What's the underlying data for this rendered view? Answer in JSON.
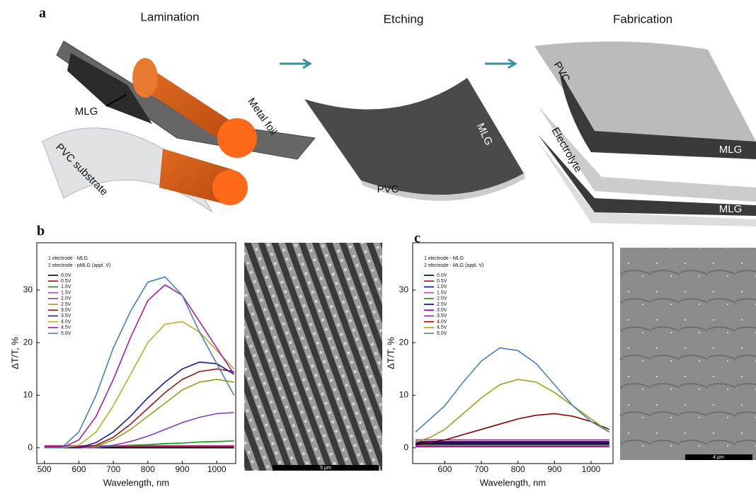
{
  "panel_labels": [
    "a",
    "b",
    "c"
  ],
  "diagram": {
    "steps": [
      "Lamination",
      "Etching",
      "Fabrication"
    ],
    "labels": [
      "MLG",
      "Metal foil",
      "PVC substrate",
      "MLG",
      "PVC",
      "PVC",
      "MLG",
      "Electrolyte",
      "MLG"
    ]
  },
  "images": [
    {
      "scale_bar": "5 μm"
    },
    {
      "scale_bar": "4 μm"
    }
  ],
  "chart_data": [
    {
      "type": "line",
      "x_label": "Wavelength, nm",
      "y_label": "ΔT/T, %",
      "legend_title": [
        "1 electrode - MLG",
        "2 electrode - pMLG (appl. V)"
      ],
      "xlim": [
        478,
        1055
      ],
      "ylim": [
        -3,
        39
      ],
      "xticks": [
        500,
        600,
        700,
        800,
        900,
        1000
      ],
      "yticks": [
        0,
        10,
        20,
        30
      ],
      "x": [
        500,
        550,
        600,
        650,
        700,
        750,
        800,
        850,
        900,
        950,
        1000,
        1050
      ],
      "series": [
        {
          "name": "0.0V",
          "color": "#000000",
          "values": [
            0,
            0,
            0,
            0,
            0,
            0,
            0,
            0,
            0,
            0,
            0,
            0
          ]
        },
        {
          "name": "0.5V",
          "color": "#c00000",
          "values": [
            0.2,
            0.2,
            0.2,
            0.2,
            0.2,
            0.2,
            0.2,
            0.2,
            0.2,
            0.2,
            0.2,
            0.2
          ]
        },
        {
          "name": "1.0V",
          "color": "#00a000",
          "values": [
            0,
            0,
            0.1,
            0.2,
            0.3,
            0.5,
            0.6,
            0.8,
            0.9,
            1.1,
            1.2,
            1.3
          ]
        },
        {
          "name": "1.5V",
          "color": "#e020e0",
          "values": [
            0.4,
            0.4,
            0.4,
            0.4,
            0.4,
            0.4,
            0.4,
            0.4,
            0.4,
            0.4,
            0.4,
            0.4
          ]
        },
        {
          "name": "2.0V",
          "color": "#8040c0",
          "values": [
            0,
            0,
            0,
            0,
            0.5,
            1.2,
            2.2,
            3.5,
            4.8,
            5.8,
            6.5,
            6.7
          ]
        },
        {
          "name": "2.5V",
          "color": "#9a9a20",
          "values": [
            0,
            0,
            0,
            0.3,
            1.5,
            3.5,
            6,
            8.5,
            11,
            12.5,
            13,
            12.5
          ]
        },
        {
          "name": "3.0V",
          "color": "#8b1a1a",
          "values": [
            0,
            0,
            0,
            0.5,
            2,
            4.5,
            7.5,
            10.5,
            13,
            14.5,
            15,
            14.5
          ]
        },
        {
          "name": "3.5V",
          "color": "#1a1a8b",
          "values": [
            0,
            0,
            0,
            1,
            3,
            6,
            9.5,
            12.5,
            15,
            16.3,
            16,
            14
          ]
        },
        {
          "name": "4.0V",
          "color": "#b0b030",
          "values": [
            0,
            0,
            0.5,
            3,
            8,
            14,
            20,
            23.5,
            24,
            22,
            18.5,
            15
          ]
        },
        {
          "name": "4.5V",
          "color": "#a020a0",
          "values": [
            0,
            0,
            1.5,
            6,
            13,
            21,
            28,
            31,
            29,
            24,
            19,
            14
          ]
        },
        {
          "name": "5.0V",
          "color": "#4a80b0",
          "values": [
            0,
            0,
            3,
            10,
            19,
            26,
            31.5,
            32.5,
            29,
            22,
            16,
            10
          ]
        }
      ]
    },
    {
      "type": "line",
      "x_label": "Wavelength, nm",
      "y_label": "ΔT/T, %",
      "legend_title": [
        "1 electrode - MLG",
        "2 electrode - MLG (appl. V)"
      ],
      "xlim": [
        512,
        1060
      ],
      "ylim": [
        -3,
        39
      ],
      "xticks": [
        600,
        700,
        800,
        900,
        1000
      ],
      "yticks": [
        0,
        10,
        20,
        30
      ],
      "x": [
        520,
        560,
        600,
        650,
        700,
        750,
        800,
        850,
        900,
        950,
        1000,
        1050
      ],
      "series": [
        {
          "name": "0.0V",
          "color": "#000000",
          "values": [
            1,
            1,
            1,
            1,
            1,
            1,
            1,
            1,
            1,
            1,
            1,
            1
          ]
        },
        {
          "name": "0.5V",
          "color": "#c00000",
          "values": [
            0.6,
            0.6,
            0.6,
            0.6,
            0.6,
            0.6,
            0.6,
            0.6,
            0.6,
            0.6,
            0.6,
            0.6
          ]
        },
        {
          "name": "1.0V",
          "color": "#0000c0",
          "values": [
            0.2,
            0.2,
            0.2,
            0.2,
            0.2,
            0.2,
            0.2,
            0.2,
            0.2,
            0.2,
            0.2,
            0.2
          ]
        },
        {
          "name": "1.5V",
          "color": "#e020e0",
          "values": [
            0.3,
            0.3,
            0.3,
            0.3,
            0.3,
            0.3,
            0.3,
            0.3,
            0.3,
            0.3,
            0.3,
            0.3
          ]
        },
        {
          "name": "2.0V",
          "color": "#00a000",
          "values": [
            0.5,
            0.5,
            0.5,
            0.5,
            0.5,
            0.5,
            0.5,
            0.5,
            0.5,
            0.5,
            0.5,
            0.5
          ]
        },
        {
          "name": "2.5V",
          "color": "#000080",
          "values": [
            0.8,
            0.8,
            0.8,
            0.8,
            0.8,
            0.8,
            0.8,
            0.8,
            0.8,
            0.8,
            0.8,
            0.8
          ]
        },
        {
          "name": "3.0V",
          "color": "#8000c0",
          "values": [
            1.2,
            1.2,
            1.2,
            1.2,
            1.2,
            1.2,
            1.2,
            1.2,
            1.2,
            1.2,
            1.2,
            1.2
          ]
        },
        {
          "name": "3.5V",
          "color": "#a020a0",
          "values": [
            1.5,
            1.5,
            1.5,
            1.5,
            1.5,
            1.5,
            1.5,
            1.5,
            1.5,
            1.5,
            1.5,
            1.5
          ]
        },
        {
          "name": "4.0V",
          "color": "#800000",
          "values": [
            0.5,
            1,
            1.5,
            2.5,
            3.5,
            4.5,
            5.5,
            6.2,
            6.5,
            6,
            5,
            3.5
          ]
        },
        {
          "name": "4.5V",
          "color": "#a0a020",
          "values": [
            1,
            2,
            3.5,
            6.5,
            9.5,
            12,
            13,
            12.5,
            10.5,
            8,
            5.5,
            3
          ]
        },
        {
          "name": "5.0V",
          "color": "#4a80b0",
          "values": [
            3,
            5.5,
            8,
            12.5,
            16.5,
            19,
            18.5,
            16,
            12,
            8,
            5,
            3
          ]
        }
      ]
    }
  ]
}
